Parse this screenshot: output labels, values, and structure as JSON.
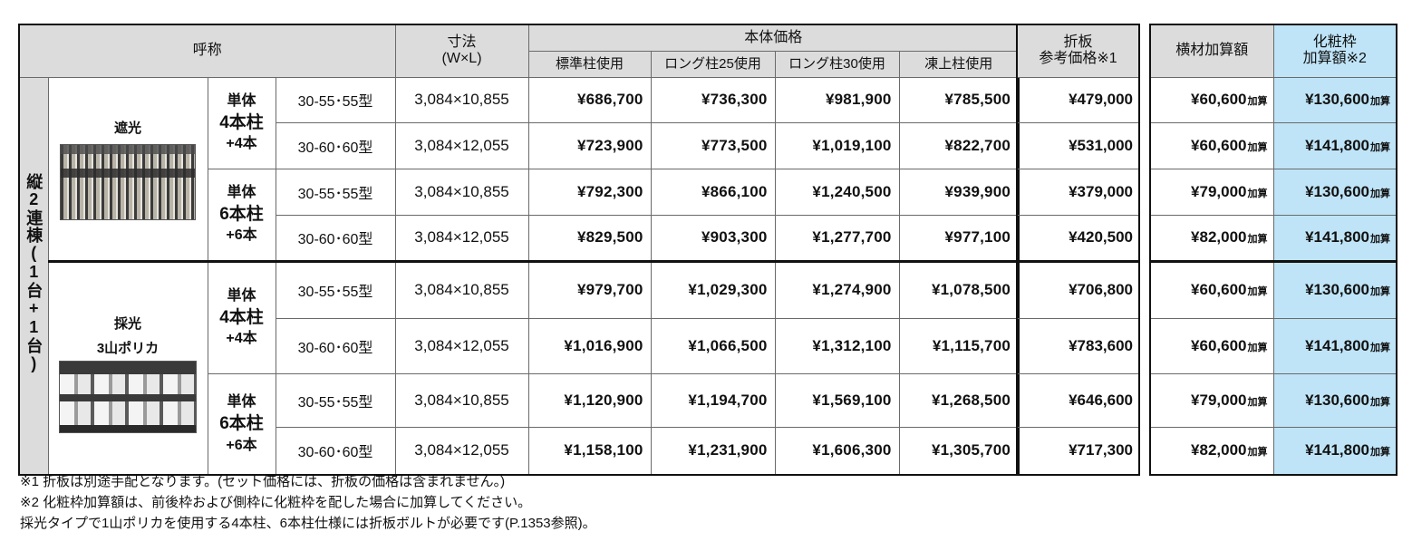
{
  "header": {
    "name": "呼称",
    "size": "寸法",
    "size_unit": "(W×L)",
    "body_price": "本体価格",
    "std_post": "標準柱使用",
    "long25": "ロング柱25使用",
    "long30": "ロング柱30使用",
    "frost": "凍上柱使用",
    "folded_line1": "折板",
    "folded_line2": "参考価格※1",
    "cross_member": "横材加算額",
    "cosmetic_line1": "化粧枠",
    "cosmetic_line2": "加算額※2"
  },
  "group_label": "縦2連棟(1台+1台)",
  "variants": [
    {
      "label": "遮光",
      "label2": ""
    },
    {
      "label": "採光",
      "label2": "3山ポリカ"
    }
  ],
  "post_groups": [
    {
      "line1": "単体",
      "line2": "4本柱",
      "line3": "+4本"
    },
    {
      "line1": "単体",
      "line2": "6本柱",
      "line3": "+6本"
    },
    {
      "line1": "単体",
      "line2": "4本柱",
      "line3": "+4本"
    },
    {
      "line1": "単体",
      "line2": "6本柱",
      "line3": "+6本"
    }
  ],
  "rows": [
    {
      "model": "30-55･55型",
      "size": "3,084×10,855",
      "std": "¥686,700",
      "l25": "¥736,300",
      "l30": "¥981,900",
      "frost": "¥785,500",
      "folded": "¥479,000",
      "cross": "¥60,600",
      "cosmetic": "¥130,600"
    },
    {
      "model": "30-60･60型",
      "size": "3,084×12,055",
      "std": "¥723,900",
      "l25": "¥773,500",
      "l30": "¥1,019,100",
      "frost": "¥822,700",
      "folded": "¥531,000",
      "cross": "¥60,600",
      "cosmetic": "¥141,800"
    },
    {
      "model": "30-55･55型",
      "size": "3,084×10,855",
      "std": "¥792,300",
      "l25": "¥866,100",
      "l30": "¥1,240,500",
      "frost": "¥939,900",
      "folded": "¥379,000",
      "cross": "¥79,000",
      "cosmetic": "¥130,600"
    },
    {
      "model": "30-60･60型",
      "size": "3,084×12,055",
      "std": "¥829,500",
      "l25": "¥903,300",
      "l30": "¥1,277,700",
      "frost": "¥977,100",
      "folded": "¥420,500",
      "cross": "¥82,000",
      "cosmetic": "¥141,800"
    },
    {
      "model": "30-55･55型",
      "size": "3,084×10,855",
      "std": "¥979,700",
      "l25": "¥1,029,300",
      "l30": "¥1,274,900",
      "frost": "¥1,078,500",
      "folded": "¥706,800",
      "cross": "¥60,600",
      "cosmetic": "¥130,600"
    },
    {
      "model": "30-60･60型",
      "size": "3,084×12,055",
      "std": "¥1,016,900",
      "l25": "¥1,066,500",
      "l30": "¥1,312,100",
      "frost": "¥1,115,700",
      "folded": "¥783,600",
      "cross": "¥60,600",
      "cosmetic": "¥141,800"
    },
    {
      "model": "30-55･55型",
      "size": "3,084×10,855",
      "std": "¥1,120,900",
      "l25": "¥1,194,700",
      "l30": "¥1,569,100",
      "frost": "¥1,268,500",
      "folded": "¥646,600",
      "cross": "¥79,000",
      "cosmetic": "¥130,600"
    },
    {
      "model": "30-60･60型",
      "size": "3,084×12,055",
      "std": "¥1,158,100",
      "l25": "¥1,231,900",
      "l30": "¥1,606,300",
      "frost": "¥1,305,700",
      "folded": "¥717,300",
      "cross": "¥82,000",
      "cosmetic": "¥141,800"
    }
  ],
  "suffix": "加算",
  "notes": [
    "※1 折板は別途手配となります。(セット価格には、折板の価格は含まれません。)",
    "※2 化粧枠加算額は、前後枠および側枠に化粧枠を配した場合に加算してください。",
    "採光タイプで1山ポリカを使用する4本柱、6本柱仕様には折板ボルトが必要です(P.1353参照)。"
  ],
  "colors": {
    "header_gray": "#dcdcdc",
    "highlight_blue": "#bfe4f7",
    "border": "#6a6a6a"
  }
}
